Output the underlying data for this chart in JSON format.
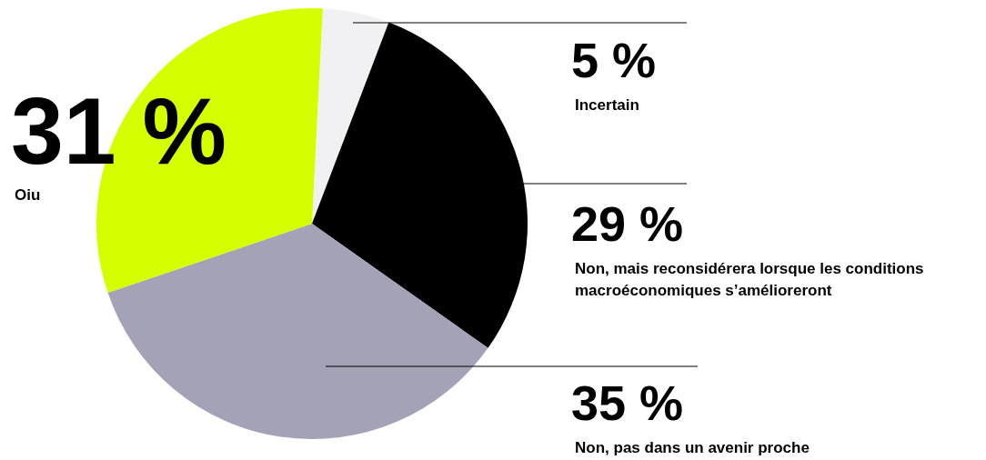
{
  "chart_data": {
    "type": "pie",
    "categories": [
      "Incertain",
      "Non, mais reconsidérera lorsque les conditions macroéconomiques s’amélioreront",
      "Non, pas dans un avenir proche",
      "Oiu"
    ],
    "values": [
      5,
      29,
      35,
      31
    ],
    "colors": [
      "#f1f1f3",
      "#000000",
      "#a4a2b6",
      "#d5ff00"
    ],
    "value_labels": [
      "5 %",
      "29 %",
      "35 %",
      "31 %"
    ]
  }
}
